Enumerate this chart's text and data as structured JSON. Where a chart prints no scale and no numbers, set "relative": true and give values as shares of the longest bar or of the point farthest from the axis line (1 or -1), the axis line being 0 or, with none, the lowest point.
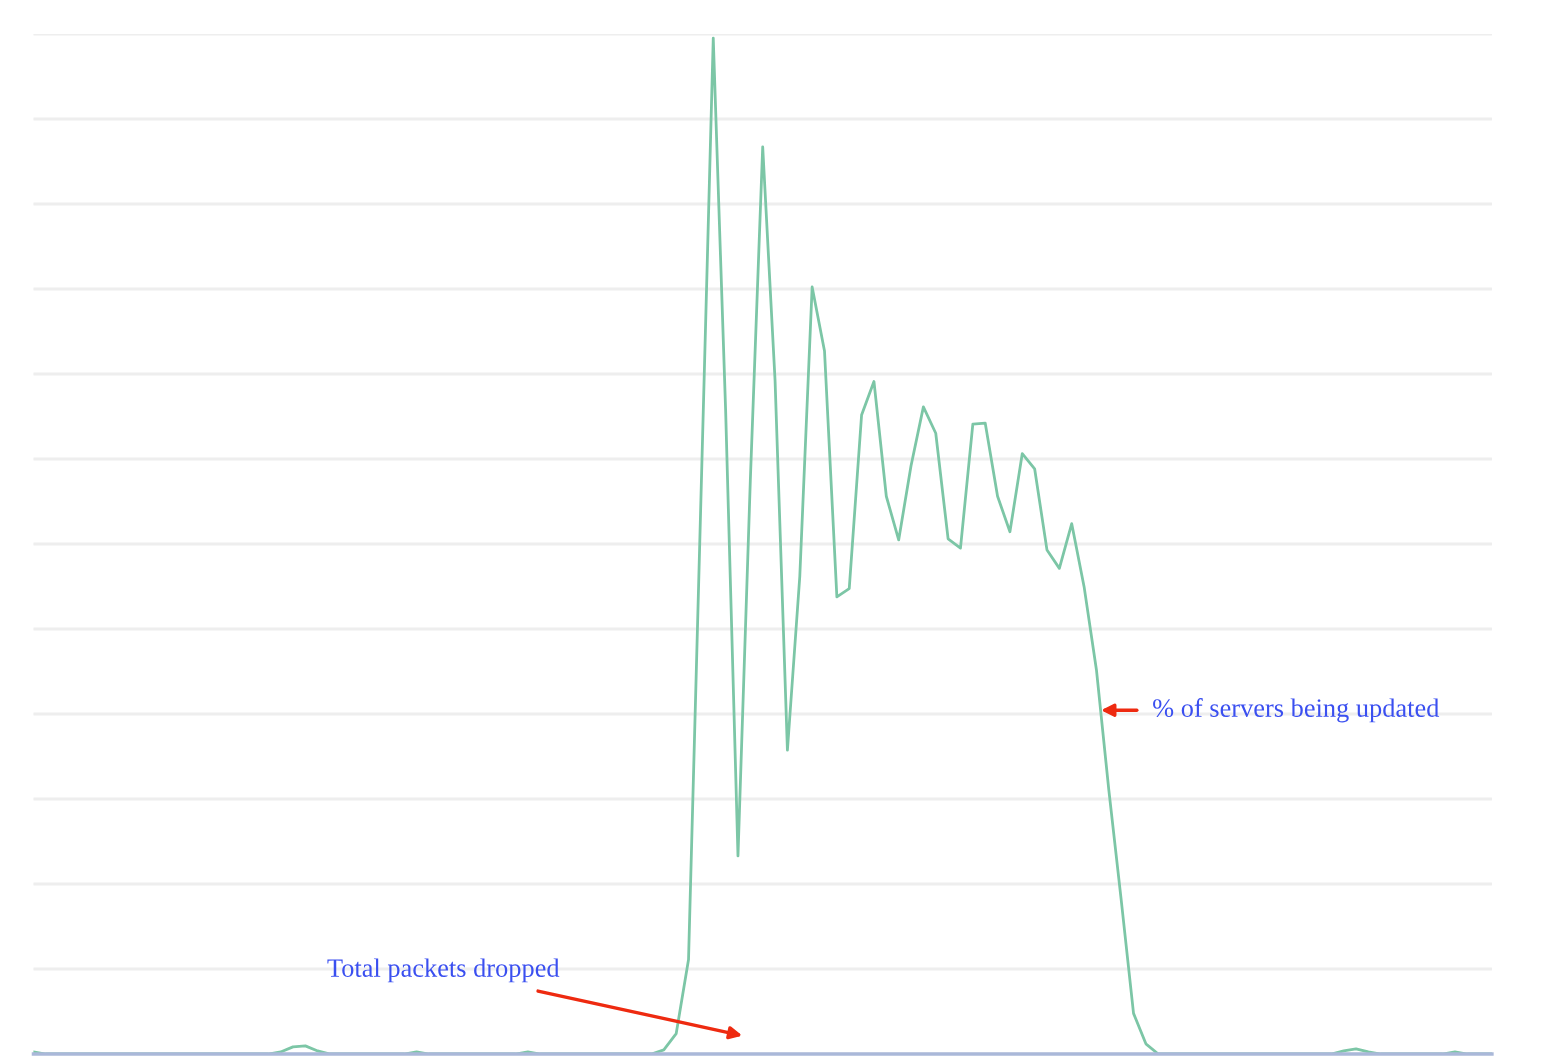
{
  "chart_data": {
    "type": "line",
    "relative": true,
    "grid": "y",
    "categories": [
      null,
      null,
      null,
      null,
      null,
      null,
      null,
      null,
      null,
      null,
      null,
      null,
      null,
      null,
      null,
      null,
      null,
      null,
      null,
      null,
      null,
      null,
      null,
      null,
      null,
      null,
      null,
      null,
      null,
      null,
      null,
      null,
      null,
      null,
      null,
      null,
      null,
      null,
      null,
      null,
      null,
      null,
      null,
      null,
      null,
      null,
      null,
      null,
      null,
      null,
      null,
      null,
      null,
      null,
      null,
      null,
      null,
      null,
      null,
      null,
      null,
      null,
      null,
      null,
      null,
      null,
      null,
      null,
      null,
      null,
      null,
      null,
      null,
      null,
      null,
      null,
      null,
      null,
      null,
      null,
      null,
      null,
      null,
      null,
      null,
      null,
      null,
      null,
      null,
      null,
      null,
      null,
      null,
      null,
      null,
      null,
      null,
      null,
      null,
      null,
      null,
      null,
      null,
      null,
      null,
      null,
      null,
      null,
      null,
      null,
      null,
      null,
      null,
      null,
      null,
      null,
      null,
      null,
      null
    ],
    "series": [
      {
        "name": "% of servers being updated",
        "color": "#7cc6a6",
        "values": [
          0.002,
          0,
          0,
          0,
          0,
          0,
          0,
          0,
          0,
          0,
          0,
          0,
          0,
          0,
          0,
          0,
          0,
          0,
          0,
          0,
          0.002,
          0.007,
          0.008,
          0.003,
          0,
          0,
          0,
          0,
          0,
          0,
          0,
          0.002,
          0,
          0,
          0,
          0,
          0,
          0,
          0,
          0,
          0.002,
          0,
          0,
          0,
          0,
          0,
          0,
          0,
          0,
          0,
          0,
          0.004,
          0.02,
          0.093,
          0.545,
          1.0,
          0.634,
          0.195,
          0.565,
          0.893,
          0.663,
          0.299,
          0.47,
          0.755,
          0.692,
          0.45,
          0.458,
          0.629,
          0.662,
          0.549,
          0.506,
          0.579,
          0.637,
          0.611,
          0.507,
          0.498,
          0.62,
          0.621,
          0.549,
          0.514,
          0.591,
          0.576,
          0.496,
          0.478,
          0.522,
          0.46,
          0.378,
          0.26,
          0.152,
          0.04,
          0.01,
          0,
          0,
          0,
          0,
          0,
          0,
          0,
          0,
          0,
          0,
          0,
          0,
          0,
          0,
          0,
          0.003,
          0.005,
          0.002,
          0,
          0,
          0,
          0,
          0,
          0,
          0.002,
          0,
          0,
          0
        ]
      }
    ],
    "annotations": [
      "Total packets dropped"
    ]
  }
}
